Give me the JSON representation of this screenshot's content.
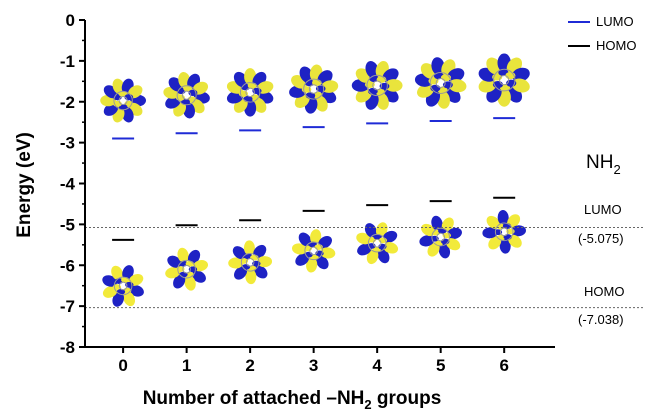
{
  "chart_data": {
    "type": "scatter",
    "xlabel": "Number of attached –NH",
    "xlabel_subscript": "2",
    "xlabel_suffix": " groups",
    "ylabel": "Energy (eV)",
    "xlim": [
      -0.6,
      6.8
    ],
    "ylim": [
      -8,
      0
    ],
    "x_ticks": [
      "0",
      "1",
      "2",
      "3",
      "4",
      "5",
      "6"
    ],
    "y_ticks": [
      "0",
      "-1",
      "-2",
      "-3",
      "-4",
      "-5",
      "-6",
      "-7",
      "-8"
    ],
    "legend": {
      "position": "top-right",
      "entries": [
        "LUMO",
        "HOMO"
      ]
    },
    "series": [
      {
        "name": "LUMO",
        "color": "#1f2bd6",
        "x": [
          0,
          1,
          2,
          3,
          4,
          5,
          6
        ],
        "values": [
          -2.9,
          -2.77,
          -2.7,
          -2.62,
          -2.53,
          -2.47,
          -2.4
        ]
      },
      {
        "name": "HOMO",
        "color": "#000000",
        "x": [
          0,
          1,
          2,
          3,
          4,
          5,
          6
        ],
        "values": [
          -5.38,
          -5.02,
          -4.9,
          -4.67,
          -4.53,
          -4.43,
          -4.35
        ]
      }
    ],
    "reference_lines": [
      {
        "label": "LUMO",
        "value_label": "(-5.075)",
        "y": -5.075
      },
      {
        "label": "HOMO",
        "value_label": "(-7.038)",
        "y": -7.038
      }
    ],
    "group_label": "NH",
    "group_label_subscript": "2"
  },
  "colors": {
    "lumo_lobe": "#1e22c4",
    "homo_lobe": "#f2ea3a",
    "lobe_alt": "#e9e43c",
    "atom": "#9a9a9a"
  }
}
